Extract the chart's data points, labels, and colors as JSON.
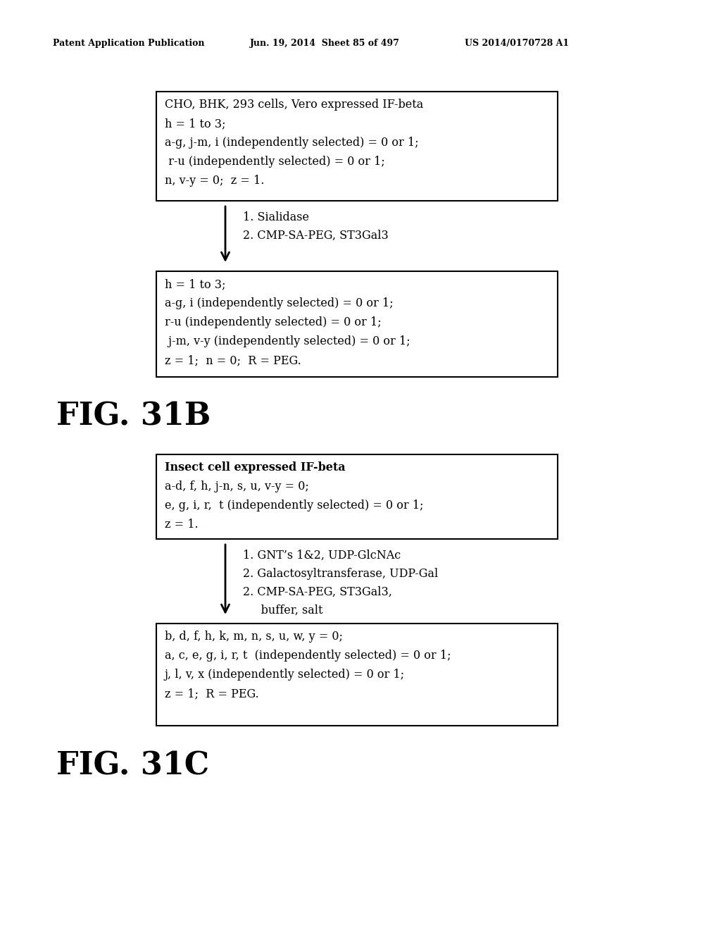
{
  "header_left": "Patent Application Publication",
  "header_mid": "Jun. 19, 2014  Sheet 85 of 497",
  "header_right": "US 2014/0170728 A1",
  "bg_color": "#ffffff",
  "fig31b": {
    "box1_lines": [
      "CHO, BHK, 293 cells, Vero expressed IF-beta",
      "h = 1 to 3;",
      "a-g, j-m, i (independently selected) = 0 or 1;",
      " r-u (independently selected) = 0 or 1;",
      "n, v-y = 0;  z = 1."
    ],
    "arrow1_lines": [
      "1. Sialidase",
      "2. CMP-SA-PEG, ST3Gal3"
    ],
    "box2_lines": [
      "h = 1 to 3;",
      "a-g, i (independently selected) = 0 or 1;",
      "r-u (independently selected) = 0 or 1;",
      " j-m, v-y (independently selected) = 0 or 1;",
      "z = 1;  n = 0;  R = PEG."
    ],
    "label": "FIG. 31B"
  },
  "fig31c": {
    "box1_lines": [
      "Insect cell expressed IF-beta",
      "a-d, f, h, j-n, s, u, v-y = 0;",
      "e, g, i, r,  t (independently selected) = 0 or 1;",
      "z = 1."
    ],
    "arrow1_lines": [
      "1. GNT’s 1&2, UDP-GlcNAc",
      "2. Galactosyltransferase, UDP-Gal",
      "2. CMP-SA-PEG, ST3Gal3,",
      "     buffer, salt"
    ],
    "box2_lines": [
      "b, d, f, h, k, m, n, s, u, w, y = 0;",
      "a, c, e, g, i, r, t  (independently selected) = 0 or 1;",
      "j, l, v, x (independently selected) = 0 or 1;",
      "z = 1;  R = PEG."
    ],
    "label": "FIG. 31C"
  }
}
